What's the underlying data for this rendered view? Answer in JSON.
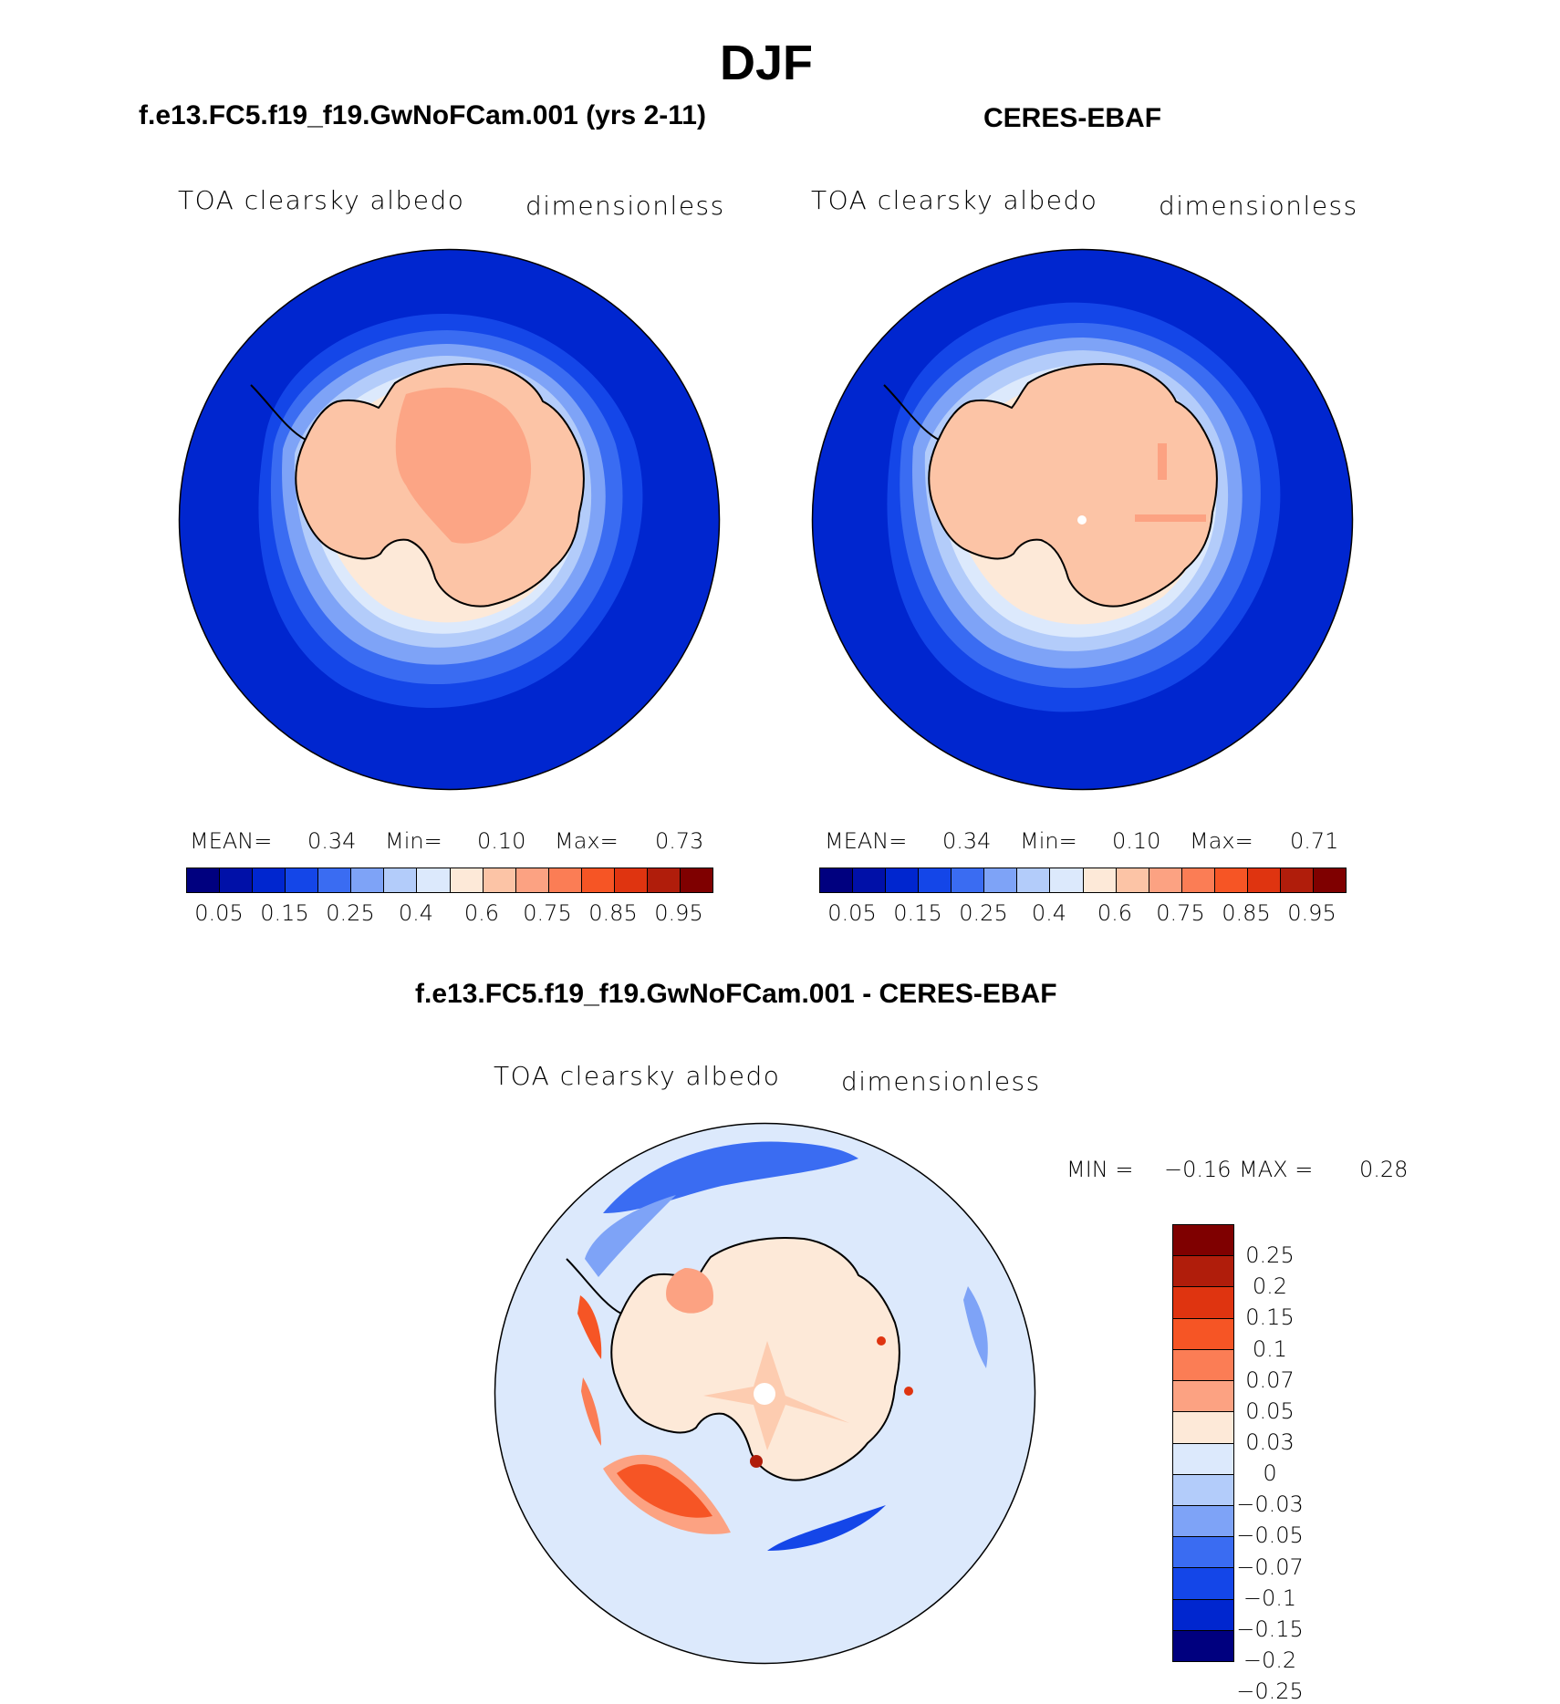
{
  "title": "DJF",
  "panels": [
    {
      "heading": "f.e13.FC5.f19_f19.GwNoFCam.001 (yrs 2-11)",
      "variable": "TOA clearsky albedo",
      "units": "dimensionless",
      "mean_label": "MEAN=",
      "mean_value": "0.34",
      "min_label": "Min=",
      "min_value": "0.10",
      "max_label": "Max=",
      "max_value": "0.73"
    },
    {
      "heading": "CERES-EBAF",
      "variable": "TOA clearsky albedo",
      "units": "dimensionless",
      "mean_label": "MEAN=",
      "mean_value": "0.34",
      "min_label": "Min=",
      "min_value": "0.10",
      "max_label": "Max=",
      "max_value": "0.71"
    }
  ],
  "difference": {
    "heading": "f.e13.FC5.f19_f19.GwNoFCam.001 - CERES-EBAF",
    "variable": "TOA clearsky albedo",
    "units": "dimensionless",
    "min_label": "MIN =",
    "min_value": "−0.16",
    "max_label": "MAX =",
    "max_value": "0.28"
  },
  "colorbar_main": {
    "colors": [
      "#00007f",
      "#0010a8",
      "#0026cf",
      "#1446e8",
      "#3a6cf2",
      "#7ea3f7",
      "#b3ccfa",
      "#dce9fc",
      "#fde9d8",
      "#fcc4a6",
      "#fca282",
      "#fb7d55",
      "#f65525",
      "#df3410",
      "#b01d0b",
      "#7f0000"
    ],
    "tick_labels": [
      "0.05",
      "0.15",
      "0.25",
      "0.4",
      "0.6",
      "0.75",
      "0.85",
      "0.95"
    ]
  },
  "colorbar_diff": {
    "colors": [
      "#7f0000",
      "#b01d0b",
      "#df3410",
      "#f65525",
      "#fb7d55",
      "#fca282",
      "#fde9d8",
      "#dce9fc",
      "#b3ccfa",
      "#7ea3f7",
      "#3a6cf2",
      "#1446e8",
      "#0026cf",
      "#00007f"
    ],
    "tick_labels": [
      "0.25",
      "0.2",
      "0.15",
      "0.1",
      "0.07",
      "0.05",
      "0.03",
      "0",
      "−0.03",
      "−0.05",
      "−0.07",
      "−0.1",
      "−0.15",
      "−0.2",
      "−0.25"
    ]
  }
}
